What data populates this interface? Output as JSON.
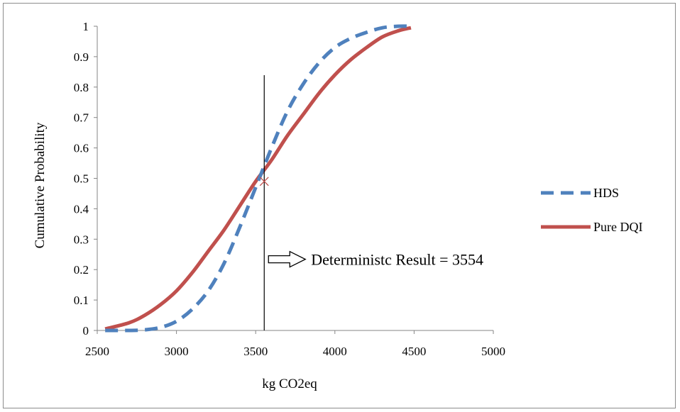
{
  "chart_data": {
    "type": "line",
    "title": "",
    "xlabel": "kg CO2eq",
    "ylabel": "Cumulative Probability",
    "xlim": [
      2500,
      5000
    ],
    "ylim": [
      0,
      1
    ],
    "x_ticks": [
      "2500",
      "3000",
      "3500",
      "4000",
      "4500",
      "5000"
    ],
    "y_ticks": [
      "0",
      "0.1",
      "0.2",
      "0.3",
      "0.4",
      "0.5",
      "0.6",
      "0.7",
      "0.8",
      "0.9",
      "1"
    ],
    "grid": false,
    "legend_position": "right",
    "series": [
      {
        "name": "HDS",
        "style": "dashed",
        "color": "#4f81bd",
        "points": [
          [
            2550,
            0.0
          ],
          [
            2700,
            0.0
          ],
          [
            2800,
            0.002
          ],
          [
            2900,
            0.01
          ],
          [
            3000,
            0.03
          ],
          [
            3100,
            0.07
          ],
          [
            3200,
            0.13
          ],
          [
            3300,
            0.22
          ],
          [
            3400,
            0.34
          ],
          [
            3500,
            0.47
          ],
          [
            3600,
            0.6
          ],
          [
            3700,
            0.72
          ],
          [
            3800,
            0.81
          ],
          [
            3900,
            0.88
          ],
          [
            4000,
            0.93
          ],
          [
            4100,
            0.96
          ],
          [
            4200,
            0.98
          ],
          [
            4300,
            0.995
          ],
          [
            4400,
            1.0
          ],
          [
            4480,
            1.0
          ]
        ]
      },
      {
        "name": "Pure DQI",
        "style": "solid",
        "color": "#c0504d",
        "points": [
          [
            2550,
            0.005
          ],
          [
            2700,
            0.025
          ],
          [
            2800,
            0.05
          ],
          [
            2900,
            0.085
          ],
          [
            3000,
            0.13
          ],
          [
            3100,
            0.19
          ],
          [
            3200,
            0.26
          ],
          [
            3300,
            0.33
          ],
          [
            3400,
            0.41
          ],
          [
            3500,
            0.49
          ],
          [
            3600,
            0.56
          ],
          [
            3700,
            0.64
          ],
          [
            3800,
            0.71
          ],
          [
            3900,
            0.78
          ],
          [
            4000,
            0.84
          ],
          [
            4100,
            0.89
          ],
          [
            4200,
            0.93
          ],
          [
            4300,
            0.965
          ],
          [
            4400,
            0.985
          ],
          [
            4480,
            0.995
          ]
        ]
      }
    ],
    "reference_line": {
      "x": 3554
    },
    "marker": {
      "x": 3554,
      "y": 0.49,
      "symbol": "x"
    },
    "annotation": {
      "text": "Deterministc Result = 3554",
      "x": 3554,
      "y": 0.22
    }
  }
}
